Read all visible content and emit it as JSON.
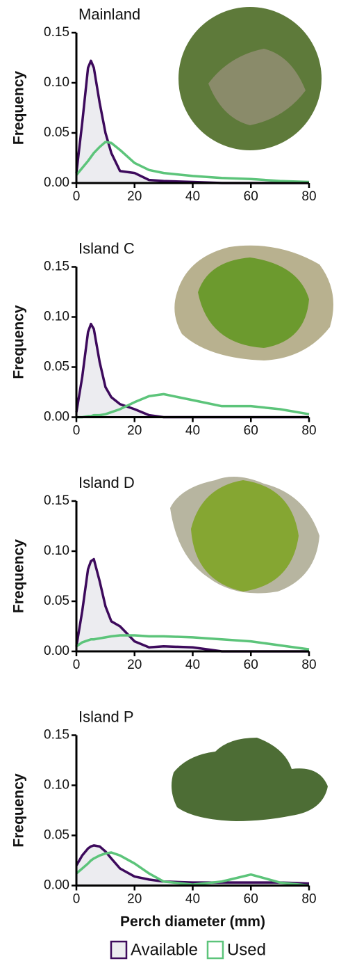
{
  "chart_data": [
    {
      "type": "line",
      "title": "Mainland",
      "y_label": "Frequency",
      "x": [
        0,
        2,
        4,
        5,
        6,
        8,
        10,
        12,
        15,
        20,
        25,
        30,
        40,
        50,
        60,
        70,
        80
      ],
      "series": [
        {
          "color": "#3d0a5c",
          "fill": "#ececf0",
          "values": [
            0.01,
            0.06,
            0.115,
            0.122,
            0.115,
            0.08,
            0.05,
            0.03,
            0.012,
            0.01,
            0.003,
            0.002,
            0.001,
            0,
            0,
            0,
            0
          ]
        },
        {
          "color": "#5cc47a",
          "values": [
            0.008,
            0.015,
            0.022,
            0.026,
            0.03,
            0.036,
            0.041,
            0.04,
            0.033,
            0.02,
            0.013,
            0.01,
            0.007,
            0.005,
            0.004,
            0.002,
            0.001
          ]
        }
      ],
      "xlim": [
        0,
        80
      ],
      "ylim": [
        0,
        0.15
      ],
      "xticks": [
        0,
        20,
        40,
        60,
        80
      ],
      "yticks": [
        {
          "value": 0,
          "label": "0.00"
        },
        {
          "value": 0.05,
          "label": "0.05"
        },
        {
          "value": 0.1,
          "label": "0.10"
        },
        {
          "value": 0.15,
          "label": "0.15"
        }
      ]
    },
    {
      "type": "line",
      "title": "Island C",
      "y_label": "Frequency",
      "x": [
        0,
        2,
        4,
        5,
        6,
        8,
        10,
        12,
        15,
        20,
        25,
        30,
        40,
        50,
        60,
        70,
        80
      ],
      "series": [
        {
          "color": "#3d0a5c",
          "fill": "#ececf0",
          "values": [
            0.005,
            0.04,
            0.085,
            0.093,
            0.088,
            0.055,
            0.03,
            0.02,
            0.013,
            0.008,
            0.002,
            0,
            0,
            0,
            0,
            0,
            0
          ]
        },
        {
          "color": "#5cc47a",
          "values": [
            0,
            0,
            0.001,
            0.001,
            0.002,
            0.002,
            0.003,
            0.005,
            0.008,
            0.015,
            0.021,
            0.023,
            0.017,
            0.011,
            0.011,
            0.008,
            0.003
          ]
        }
      ],
      "xlim": [
        0,
        80
      ],
      "ylim": [
        0,
        0.15
      ],
      "xticks": [
        0,
        20,
        40,
        60,
        80
      ],
      "yticks": [
        {
          "value": 0,
          "label": "0.00"
        },
        {
          "value": 0.05,
          "label": "0.05"
        },
        {
          "value": 0.1,
          "label": "0.10"
        },
        {
          "value": 0.15,
          "label": "0.15"
        }
      ]
    },
    {
      "type": "line",
      "title": "Island D",
      "y_label": "Frequency",
      "x": [
        0,
        2,
        4,
        5,
        6,
        8,
        10,
        12,
        15,
        20,
        25,
        30,
        40,
        50,
        60,
        70,
        80
      ],
      "series": [
        {
          "color": "#3d0a5c",
          "fill": "#ececf0",
          "values": [
            0.005,
            0.04,
            0.082,
            0.09,
            0.092,
            0.07,
            0.045,
            0.03,
            0.025,
            0.01,
            0.004,
            0.005,
            0.004,
            0,
            0,
            0,
            0
          ]
        },
        {
          "color": "#5cc47a",
          "values": [
            0.005,
            0.009,
            0.011,
            0.012,
            0.012,
            0.013,
            0.014,
            0.015,
            0.016,
            0.016,
            0.015,
            0.015,
            0.014,
            0.012,
            0.01,
            0.006,
            0.002
          ]
        }
      ],
      "xlim": [
        0,
        80
      ],
      "ylim": [
        0,
        0.15
      ],
      "xticks": [
        0,
        20,
        40,
        60,
        80
      ],
      "yticks": [
        {
          "value": 0,
          "label": "0.00"
        },
        {
          "value": 0.05,
          "label": "0.05"
        },
        {
          "value": 0.1,
          "label": "0.10"
        },
        {
          "value": 0.15,
          "label": "0.15"
        }
      ]
    },
    {
      "type": "line",
      "title": "Island P",
      "y_label": "Frequency",
      "x_label": "Perch diameter (mm)",
      "x": [
        0,
        2,
        4,
        5,
        6,
        8,
        10,
        12,
        15,
        20,
        25,
        30,
        40,
        50,
        60,
        70,
        80
      ],
      "series": [
        {
          "name": "Available",
          "color": "#3d0a5c",
          "fill": "#ececf0",
          "values": [
            0.02,
            0.03,
            0.037,
            0.039,
            0.04,
            0.039,
            0.034,
            0.027,
            0.017,
            0.009,
            0.006,
            0.004,
            0.003,
            0.003,
            0.003,
            0.003,
            0.002
          ]
        },
        {
          "name": "Used",
          "color": "#5cc47a",
          "values": [
            0.012,
            0.017,
            0.022,
            0.025,
            0.027,
            0.03,
            0.032,
            0.033,
            0.03,
            0.022,
            0.012,
            0.004,
            0.001,
            0.004,
            0.011,
            0.003,
            0
          ]
        }
      ],
      "xlim": [
        0,
        80
      ],
      "ylim": [
        0,
        0.15
      ],
      "xticks": [
        0,
        20,
        40,
        60,
        80
      ],
      "yticks": [
        {
          "value": 0,
          "label": "0.00"
        },
        {
          "value": 0.05,
          "label": "0.05"
        },
        {
          "value": 0.1,
          "label": "0.10"
        },
        {
          "value": 0.15,
          "label": "0.15"
        }
      ]
    }
  ]
}
